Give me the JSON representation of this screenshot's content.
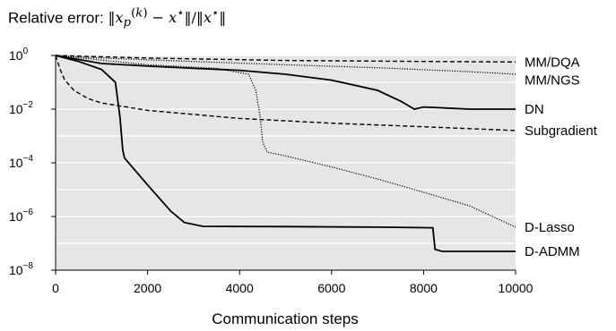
{
  "chart_data": {
    "type": "line",
    "title": "Relative error: ‖x_p^(k) − x*‖/‖x*‖",
    "xlabel": "Communication steps",
    "ylabel": "",
    "xlim": [
      0,
      10000
    ],
    "ylim": [
      1e-08,
      1
    ],
    "yscale": "log",
    "grid": true,
    "x_ticks": [
      "0",
      "2000",
      "4000",
      "6000",
      "8000",
      "10000"
    ],
    "y_ticks": [
      {
        "base": "10",
        "exp": "0"
      },
      {
        "base": "10",
        "exp": "−2"
      },
      {
        "base": "10",
        "exp": "−4"
      },
      {
        "base": "10",
        "exp": "−6"
      },
      {
        "base": "10",
        "exp": "−8"
      }
    ],
    "series": [
      {
        "name": "MM/DQA",
        "style": "dashed",
        "points": [
          [
            0,
            1.0
          ],
          [
            2000,
            0.8
          ],
          [
            5000,
            0.65
          ],
          [
            8000,
            0.6
          ],
          [
            10000,
            0.57
          ]
        ]
      },
      {
        "name": "MM/NGS",
        "style": "dotted",
        "points": [
          [
            0,
            1.0
          ],
          [
            1000,
            0.8
          ],
          [
            3000,
            0.6
          ],
          [
            5000,
            0.45
          ],
          [
            7000,
            0.35
          ],
          [
            9000,
            0.25
          ],
          [
            10000,
            0.2
          ]
        ]
      },
      {
        "name": "DN",
        "style": "solid",
        "points": [
          [
            0,
            1.0
          ],
          [
            1000,
            0.5
          ],
          [
            2000,
            0.4
          ],
          [
            3000,
            0.33
          ],
          [
            4000,
            0.28
          ],
          [
            5000,
            0.2
          ],
          [
            6000,
            0.12
          ],
          [
            7000,
            0.05
          ],
          [
            7500,
            0.02
          ],
          [
            7800,
            0.01
          ],
          [
            8000,
            0.012
          ],
          [
            9000,
            0.01
          ],
          [
            10000,
            0.01
          ]
        ]
      },
      {
        "name": "Subgradient",
        "style": "dashed",
        "points": [
          [
            0,
            1.0
          ],
          [
            100,
            0.3
          ],
          [
            200,
            0.12
          ],
          [
            400,
            0.05
          ],
          [
            700,
            0.025
          ],
          [
            1000,
            0.017
          ],
          [
            2000,
            0.009
          ],
          [
            4000,
            0.0045
          ],
          [
            6000,
            0.003
          ],
          [
            8000,
            0.0022
          ],
          [
            10000,
            0.0016
          ]
        ]
      },
      {
        "name": "D-Lasso",
        "style": "dotted",
        "points": [
          [
            0,
            1.0
          ],
          [
            2000,
            0.45
          ],
          [
            3500,
            0.33
          ],
          [
            4200,
            0.2
          ],
          [
            4350,
            0.05
          ],
          [
            4450,
            0.005
          ],
          [
            4500,
            0.0006
          ],
          [
            4600,
            0.00025
          ],
          [
            5000,
            0.00018
          ],
          [
            6000,
            7e-05
          ],
          [
            7000,
            2.5e-05
          ],
          [
            8000,
            8e-06
          ],
          [
            9000,
            2.5e-06
          ],
          [
            10000,
            4e-07
          ]
        ]
      },
      {
        "name": "D-ADMM",
        "style": "solid",
        "points": [
          [
            0,
            1.0
          ],
          [
            500,
            0.6
          ],
          [
            1000,
            0.3
          ],
          [
            1300,
            0.1
          ],
          [
            1400,
            0.005
          ],
          [
            1460,
            0.0003
          ],
          [
            1500,
            0.00015
          ],
          [
            2000,
            1.5e-05
          ],
          [
            2500,
            1.6e-06
          ],
          [
            2800,
            6e-07
          ],
          [
            3200,
            4.3e-07
          ],
          [
            5000,
            4.2e-07
          ],
          [
            7000,
            4e-07
          ],
          [
            8200,
            3.8e-07
          ],
          [
            8250,
            6e-08
          ],
          [
            8400,
            5e-08
          ],
          [
            10000,
            5e-08
          ]
        ]
      }
    ]
  }
}
